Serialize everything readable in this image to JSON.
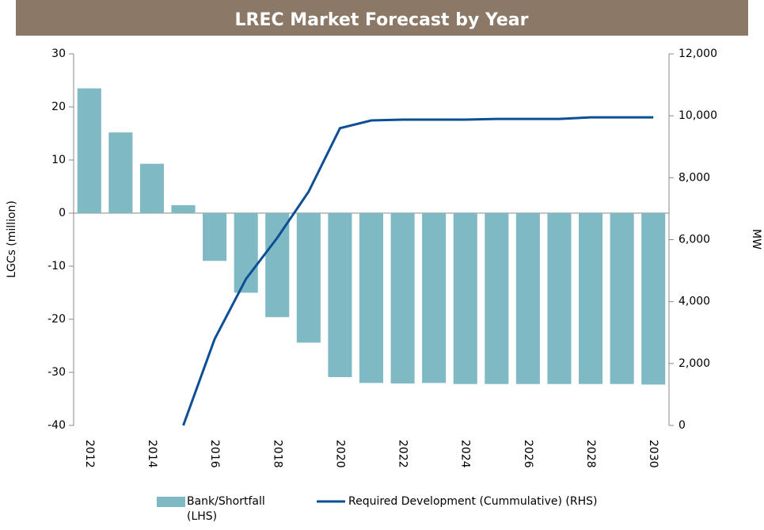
{
  "chart_data": {
    "type": "bar",
    "title": "LREC Market Forecast by Year",
    "categories": [
      "2012",
      null,
      "2014",
      null,
      "2016",
      null,
      "2018",
      null,
      "2020",
      null,
      "2022",
      null,
      "2024",
      null,
      "2026",
      null,
      "2028",
      null,
      "2030"
    ],
    "series": [
      {
        "name": "Bank/Shortfall (LHS)",
        "type": "bar",
        "color": "#7fbac4",
        "values": [
          23.5,
          15.2,
          9.3,
          1.5,
          -9,
          -15,
          -19.6,
          -24.4,
          -30.9,
          -32,
          -32.1,
          -32,
          -32.2,
          -32.2,
          -32.2,
          -32.2,
          -32.2,
          -32.2,
          -32.3
        ]
      },
      {
        "name": "Required Development (Cummulative) (RHS)",
        "type": "line",
        "axis": "y2",
        "color": "#0d4f97",
        "values": [
          null,
          null,
          null,
          0,
          2790,
          4730,
          6060,
          7550,
          9600,
          9850,
          9875,
          9875,
          9875,
          9900,
          9900,
          9900,
          9950,
          9950,
          9950
        ]
      }
    ],
    "ylabel": "LGCs (million)",
    "y2label": "MW",
    "ylim": [
      -40,
      30
    ],
    "yticks": [
      -40,
      -30,
      -20,
      -10,
      0,
      10,
      20,
      30
    ],
    "y2lim": [
      0,
      12000
    ],
    "y2ticks": [
      0,
      {
        "value": 2000,
        "label": "2,000"
      },
      {
        "value": 4000,
        "label": "4,000"
      },
      {
        "value": 6000,
        "label": "6,000"
      },
      {
        "value": 8000,
        "label": "8,000"
      },
      {
        "value": 10000,
        "label": "10,000"
      },
      {
        "value": 12000,
        "label": "12,000"
      }
    ],
    "title_background": "#8b7866",
    "legend": "bottom"
  }
}
